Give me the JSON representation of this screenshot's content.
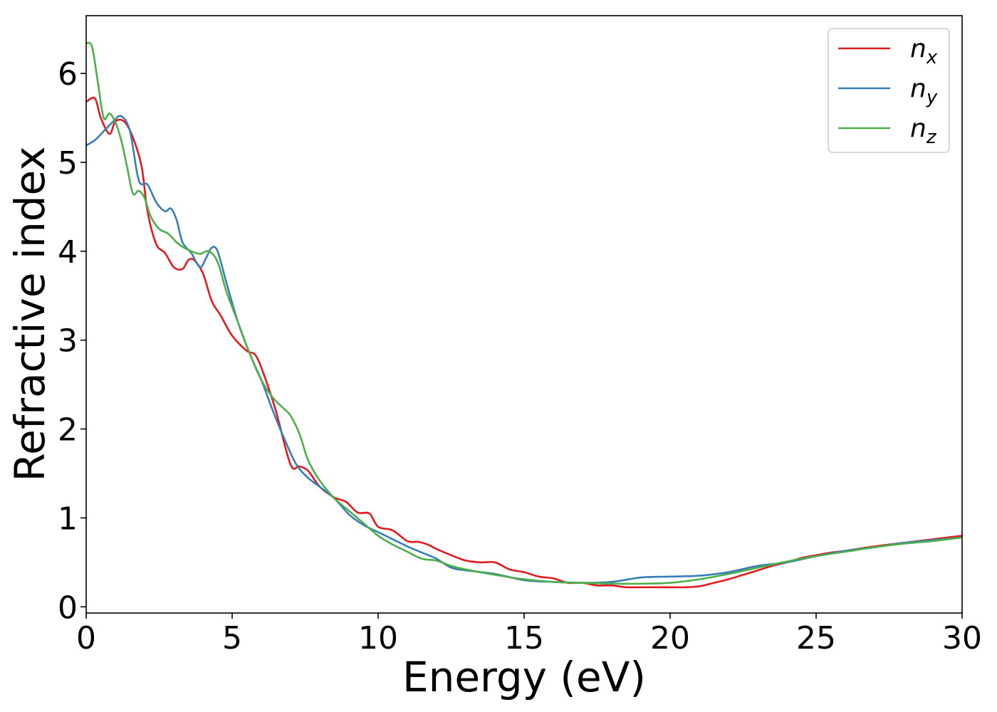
{
  "chart_data": {
    "type": "line",
    "xlabel": "Energy (eV)",
    "ylabel": "Refractive index",
    "xlim": [
      0,
      30
    ],
    "ylim": [
      -0.07,
      6.65
    ],
    "xticks": [
      0,
      5,
      10,
      15,
      20,
      25,
      30
    ],
    "yticks": [
      0,
      1,
      2,
      3,
      4,
      5,
      6
    ],
    "grid": false,
    "legend_position": "top-right",
    "series": [
      {
        "name": "n_x",
        "name_base": "n",
        "name_sub": "x",
        "color": "#e41a1c",
        "x": [
          0,
          0.3,
          0.5,
          0.8,
          1.0,
          1.3,
          1.6,
          1.9,
          2.1,
          2.4,
          2.7,
          3.0,
          3.3,
          3.5,
          3.7,
          4.0,
          4.3,
          4.6,
          5.0,
          5.5,
          5.8,
          6.1,
          6.5,
          7.0,
          7.3,
          7.6,
          8.0,
          8.5,
          8.9,
          9.3,
          9.7,
          10.0,
          10.5,
          11.0,
          11.4,
          11.7,
          12.0,
          12.5,
          13.0,
          13.5,
          14.0,
          14.5,
          15.0,
          15.5,
          16.0,
          16.5,
          17.0,
          17.5,
          18.0,
          18.5,
          19.0,
          19.5,
          20.0,
          20.5,
          21.0,
          21.5,
          22.0,
          22.5,
          23.0,
          23.5,
          24.0,
          24.5,
          25.0,
          25.5,
          26.0,
          27.0,
          28.0,
          29.0,
          30.0
        ],
        "y": [
          5.68,
          5.72,
          5.5,
          5.32,
          5.46,
          5.46,
          5.28,
          4.95,
          4.45,
          4.08,
          3.98,
          3.82,
          3.8,
          3.9,
          3.9,
          3.75,
          3.44,
          3.28,
          3.05,
          2.88,
          2.83,
          2.6,
          2.2,
          1.6,
          1.58,
          1.53,
          1.35,
          1.23,
          1.18,
          1.06,
          1.05,
          0.9,
          0.86,
          0.74,
          0.73,
          0.7,
          0.65,
          0.58,
          0.52,
          0.5,
          0.5,
          0.42,
          0.39,
          0.34,
          0.32,
          0.27,
          0.27,
          0.24,
          0.24,
          0.22,
          0.22,
          0.22,
          0.22,
          0.22,
          0.23,
          0.27,
          0.31,
          0.36,
          0.41,
          0.46,
          0.5,
          0.55,
          0.58,
          0.61,
          0.63,
          0.68,
          0.72,
          0.76,
          0.8
        ]
      },
      {
        "name": "n_y",
        "name_base": "n",
        "name_sub": "y",
        "color": "#377eb8",
        "x": [
          0,
          0.3,
          0.6,
          0.9,
          1.2,
          1.5,
          1.8,
          2.1,
          2.4,
          2.7,
          2.9,
          3.1,
          3.3,
          3.6,
          3.9,
          4.1,
          4.3,
          4.5,
          4.8,
          5.2,
          5.6,
          6.0,
          6.4,
          6.8,
          7.2,
          7.6,
          8.0,
          8.5,
          9.0,
          9.5,
          10.0,
          10.5,
          11.0,
          11.5,
          12.0,
          12.5,
          13.0,
          14.0,
          15.0,
          16.0,
          17.0,
          18.0,
          19.0,
          20.0,
          21.0,
          22.0,
          23.0,
          24.0,
          25.0,
          26.0,
          27.0,
          28.0,
          29.0,
          30.0
        ],
        "y": [
          5.19,
          5.25,
          5.35,
          5.45,
          5.52,
          5.35,
          4.8,
          4.75,
          4.55,
          4.45,
          4.48,
          4.35,
          4.1,
          3.98,
          3.82,
          3.92,
          4.04,
          4.0,
          3.65,
          3.2,
          2.85,
          2.55,
          2.2,
          1.88,
          1.6,
          1.45,
          1.35,
          1.22,
          1.04,
          0.92,
          0.84,
          0.76,
          0.68,
          0.61,
          0.54,
          0.44,
          0.41,
          0.37,
          0.3,
          0.28,
          0.27,
          0.28,
          0.33,
          0.34,
          0.35,
          0.39,
          0.46,
          0.5,
          0.57,
          0.63,
          0.67,
          0.72,
          0.75,
          0.78
        ]
      },
      {
        "name": "n_z",
        "name_base": "n",
        "name_sub": "z",
        "color": "#4daf4a",
        "x": [
          0,
          0.2,
          0.4,
          0.6,
          0.8,
          1.0,
          1.2,
          1.4,
          1.6,
          1.8,
          2.0,
          2.2,
          2.5,
          2.8,
          3.1,
          3.3,
          3.6,
          3.9,
          4.2,
          4.5,
          4.8,
          5.2,
          5.6,
          6.0,
          6.4,
          6.8,
          7.0,
          7.3,
          7.6,
          8.0,
          8.5,
          9.0,
          9.5,
          10.0,
          10.5,
          11.0,
          11.5,
          12.0,
          12.5,
          13.0,
          14.0,
          15.0,
          16.0,
          17.0,
          18.0,
          19.0,
          20.0,
          21.0,
          22.0,
          23.0,
          24.0,
          25.0,
          26.0,
          27.0,
          28.0,
          29.0,
          30.0
        ],
        "y": [
          6.34,
          6.3,
          5.9,
          5.5,
          5.55,
          5.45,
          5.25,
          4.95,
          4.65,
          4.68,
          4.6,
          4.4,
          4.25,
          4.2,
          4.1,
          4.05,
          4.0,
          3.97,
          4.0,
          3.88,
          3.55,
          3.2,
          2.85,
          2.55,
          2.35,
          2.22,
          2.15,
          1.95,
          1.65,
          1.42,
          1.22,
          1.08,
          0.94,
          0.8,
          0.7,
          0.62,
          0.54,
          0.52,
          0.46,
          0.42,
          0.36,
          0.31,
          0.28,
          0.27,
          0.26,
          0.26,
          0.27,
          0.31,
          0.37,
          0.44,
          0.51,
          0.57,
          0.62,
          0.67,
          0.71,
          0.74,
          0.78
        ]
      }
    ]
  }
}
